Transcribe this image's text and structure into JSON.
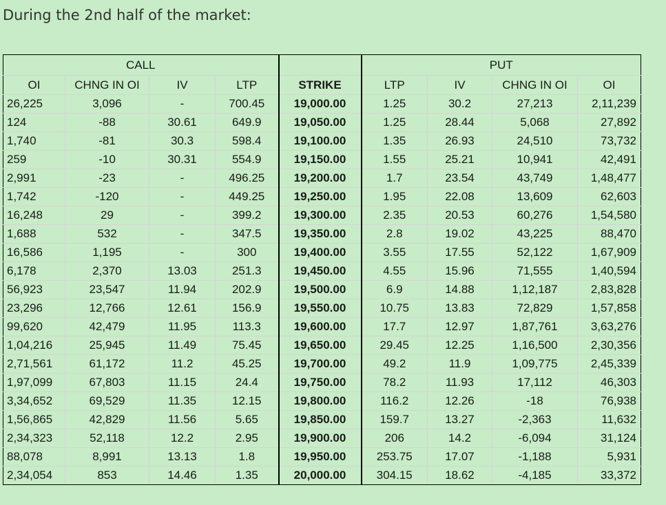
{
  "heading": "During the 2nd half of the market:",
  "groups": {
    "call": "CALL",
    "put": "PUT"
  },
  "columns": [
    "OI",
    "CHNG IN OI",
    "IV",
    "LTP",
    "STRIKE",
    "LTP",
    "IV",
    "CHNG IN OI",
    "OI"
  ],
  "rows": [
    [
      "26,225",
      "3,096",
      "-",
      "700.45",
      "19,000.00",
      "1.25",
      "30.2",
      "27,213",
      "2,11,239"
    ],
    [
      "124",
      "-88",
      "30.61",
      "649.9",
      "19,050.00",
      "1.25",
      "28.44",
      "5,068",
      "27,892"
    ],
    [
      "1,740",
      "-81",
      "30.3",
      "598.4",
      "19,100.00",
      "1.35",
      "26.93",
      "24,510",
      "73,732"
    ],
    [
      "259",
      "-10",
      "30.31",
      "554.9",
      "19,150.00",
      "1.55",
      "25.21",
      "10,941",
      "42,491"
    ],
    [
      "2,991",
      "-23",
      "-",
      "496.25",
      "19,200.00",
      "1.7",
      "23.54",
      "43,749",
      "1,48,477"
    ],
    [
      "1,742",
      "-120",
      "-",
      "449.25",
      "19,250.00",
      "1.95",
      "22.08",
      "13,609",
      "62,603"
    ],
    [
      "16,248",
      "29",
      "-",
      "399.2",
      "19,300.00",
      "2.35",
      "20.53",
      "60,276",
      "1,54,580"
    ],
    [
      "1,688",
      "532",
      "-",
      "347.5",
      "19,350.00",
      "2.8",
      "19.02",
      "43,225",
      "88,470"
    ],
    [
      "16,586",
      "1,195",
      "-",
      "300",
      "19,400.00",
      "3.55",
      "17.55",
      "52,122",
      "1,67,909"
    ],
    [
      "6,178",
      "2,370",
      "13.03",
      "251.3",
      "19,450.00",
      "4.55",
      "15.96",
      "71,555",
      "1,40,594"
    ],
    [
      "56,923",
      "23,547",
      "11.94",
      "202.9",
      "19,500.00",
      "6.9",
      "14.88",
      "1,12,187",
      "2,83,828"
    ],
    [
      "23,296",
      "12,766",
      "12.61",
      "156.9",
      "19,550.00",
      "10.75",
      "13.83",
      "72,829",
      "1,57,858"
    ],
    [
      "99,620",
      "42,479",
      "11.95",
      "113.3",
      "19,600.00",
      "17.7",
      "12.97",
      "1,87,761",
      "3,63,276"
    ],
    [
      "1,04,216",
      "25,945",
      "11.49",
      "75.45",
      "19,650.00",
      "29.45",
      "12.25",
      "1,16,500",
      "2,30,356"
    ],
    [
      "2,71,561",
      "61,172",
      "11.2",
      "45.25",
      "19,700.00",
      "49.2",
      "11.9",
      "1,09,775",
      "2,45,339"
    ],
    [
      "1,97,099",
      "67,803",
      "11.15",
      "24.4",
      "19,750.00",
      "78.2",
      "11.93",
      "17,112",
      "46,303"
    ],
    [
      "3,34,652",
      "69,529",
      "11.35",
      "12.15",
      "19,800.00",
      "116.2",
      "12.26",
      "-18",
      "76,938"
    ],
    [
      "1,56,865",
      "42,829",
      "11.56",
      "5.65",
      "19,850.00",
      "159.7",
      "13.27",
      "-2,363",
      "11,632"
    ],
    [
      "2,34,323",
      "52,118",
      "12.2",
      "2.95",
      "19,900.00",
      "206",
      "14.2",
      "-6,094",
      "31,124"
    ],
    [
      "88,078",
      "8,991",
      "13.13",
      "1.8",
      "19,950.00",
      "253.75",
      "17.07",
      "-1,188",
      "5,931"
    ],
    [
      "2,34,054",
      "853",
      "14.46",
      "1.35",
      "20,000.00",
      "304.15",
      "18.62",
      "-4,185",
      "33,372"
    ]
  ]
}
